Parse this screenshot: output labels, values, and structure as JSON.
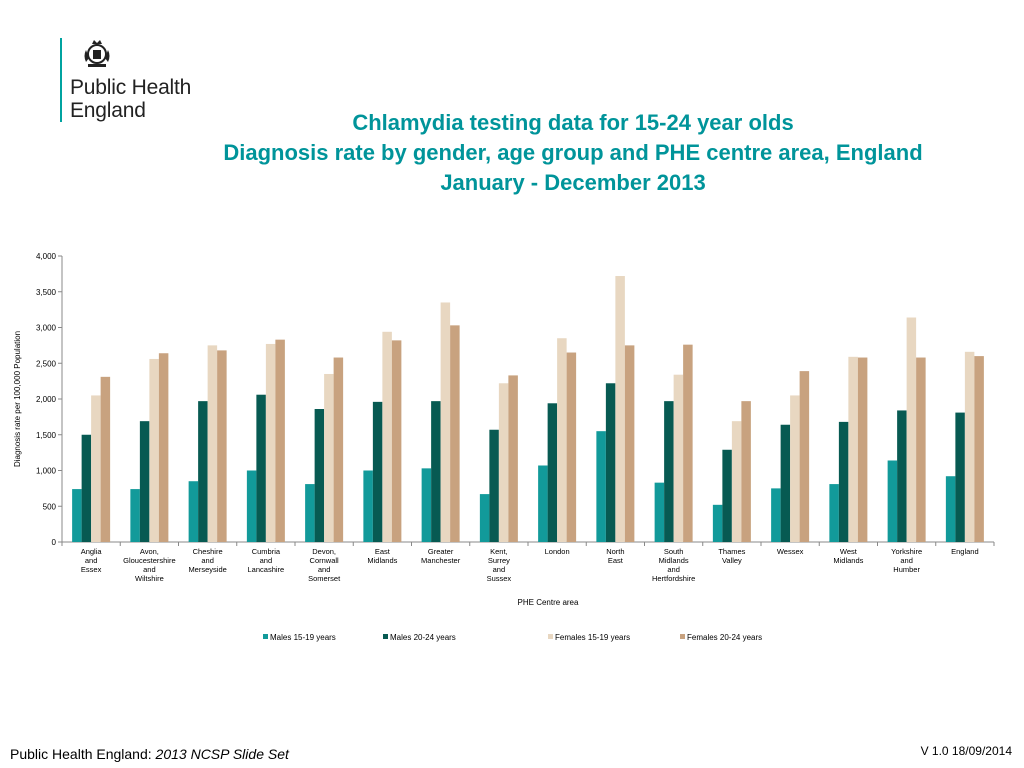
{
  "logo": {
    "line1": "Public Health",
    "line2": "England",
    "icon": "royal-crest-icon"
  },
  "title": {
    "line1": "Chlamydia testing data for 15-24 year olds",
    "line2": "Diagnosis rate by gender, age group and PHE centre area,  England",
    "line3": "January - December 2013"
  },
  "chart_data": {
    "type": "bar",
    "xlabel": "PHE Centre area",
    "ylabel": "Diagnosis rate per 100,000 Population",
    "ylim": [
      0,
      4000
    ],
    "yticks": [
      "0",
      "500",
      "1,000",
      "1,500",
      "2,000",
      "2,500",
      "3,000",
      "3,500",
      "4,000"
    ],
    "ytick_values": [
      0,
      500,
      1000,
      1500,
      2000,
      2500,
      3000,
      3500,
      4000
    ],
    "grid": false,
    "legend": "bottom",
    "categories": [
      [
        "Anglia",
        "and",
        "Essex"
      ],
      [
        "Avon,",
        "Gloucestershire",
        "and",
        "Wiltshire"
      ],
      [
        "Cheshire",
        "and",
        "Merseyside"
      ],
      [
        "Cumbria",
        "and",
        "Lancashire"
      ],
      [
        "Devon,",
        "Cornwall",
        "and",
        "Somerset"
      ],
      [
        "East",
        "Midlands"
      ],
      [
        "Greater",
        "Manchester"
      ],
      [
        "Kent,",
        "Surrey",
        "and",
        "Sussex"
      ],
      [
        "London"
      ],
      [
        "North",
        "East"
      ],
      [
        "South",
        "Midlands",
        "and",
        "Hertfordshire"
      ],
      [
        "Thames",
        "Valley"
      ],
      [
        "Wessex"
      ],
      [
        "West",
        "Midlands"
      ],
      [
        "Yorkshire",
        "and",
        "Humber"
      ],
      [
        "England"
      ]
    ],
    "series": [
      {
        "name": "Males 15-19 years",
        "color": "#129a9a",
        "values": [
          740,
          740,
          850,
          1000,
          810,
          1000,
          1030,
          670,
          1070,
          1550,
          830,
          520,
          750,
          810,
          1140,
          920
        ]
      },
      {
        "name": "Males 20-24 years",
        "color": "#075a52",
        "values": [
          1500,
          1690,
          1970,
          2060,
          1860,
          1960,
          1970,
          1570,
          1940,
          2220,
          1970,
          1290,
          1640,
          1680,
          1840,
          1810
        ]
      },
      {
        "name": "Females 15-19 years",
        "color": "#e8d7c1",
        "values": [
          2050,
          2560,
          2750,
          2770,
          2350,
          2940,
          3350,
          2220,
          2850,
          3720,
          2340,
          1690,
          2050,
          2590,
          3140,
          2660
        ]
      },
      {
        "name": "Females 20-24 years",
        "color": "#c8a27f",
        "values": [
          2310,
          2640,
          2680,
          2830,
          2580,
          2820,
          3030,
          2330,
          2650,
          2750,
          2760,
          1970,
          2390,
          2580,
          2580,
          2600
        ]
      }
    ]
  },
  "footer": {
    "org": "Public Health England:",
    "slideset": "2013 NCSP Slide Set",
    "version": "V 1.0  18/09/2014"
  }
}
